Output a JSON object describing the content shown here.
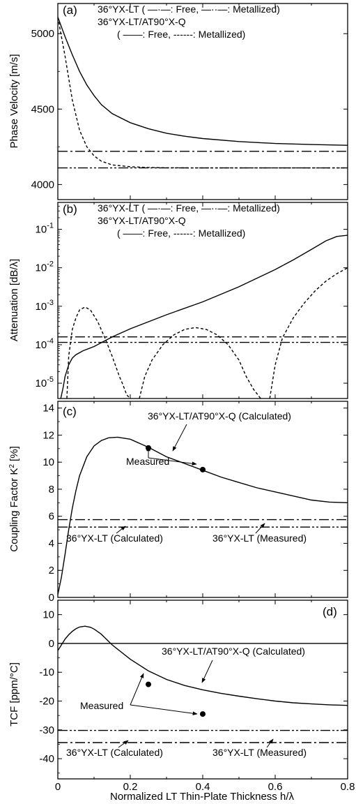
{
  "x_axis": {
    "label": "Normalized  LT  Thin-Plate  Thickness  h/λ",
    "range": [
      0,
      0.8
    ],
    "ticks": [
      "0",
      "0.2",
      "0.4",
      "0.6",
      "0.8"
    ]
  },
  "chart_data": [
    {
      "id": "a",
      "panel_label": "(a)",
      "type": "line",
      "ylabel": "Phase  Velocity  [m/s]",
      "yscale": "linear",
      "ylim": [
        3900,
        5200
      ],
      "yticks": [
        {
          "v": 4000,
          "label": "4000"
        },
        {
          "v": 4500,
          "label": "4500"
        },
        {
          "v": 5000,
          "label": "5000"
        }
      ],
      "legend": [
        "36°YX-LT (  —·—:  Free,  —··—:  Metallized)",
        "36°YX-LT/AT90°X-Q",
        "( ——:  Free,  ------:  Metallized)"
      ],
      "series": [
        {
          "style": "solid",
          "x": [
            0,
            0.02,
            0.04,
            0.06,
            0.08,
            0.1,
            0.12,
            0.15,
            0.2,
            0.25,
            0.3,
            0.35,
            0.4,
            0.5,
            0.6,
            0.7,
            0.8
          ],
          "y": [
            5110,
            4980,
            4860,
            4750,
            4660,
            4590,
            4530,
            4470,
            4410,
            4370,
            4340,
            4320,
            4305,
            4285,
            4272,
            4265,
            4260
          ]
        },
        {
          "style": "dashed",
          "x": [
            0,
            0.02,
            0.04,
            0.06,
            0.08,
            0.1,
            0.12,
            0.15,
            0.2,
            0.25,
            0.3,
            0.4,
            0.5,
            0.6,
            0.8
          ],
          "y": [
            5110,
            4850,
            4560,
            4360,
            4250,
            4190,
            4155,
            4130,
            4118,
            4113,
            4111,
            4110,
            4110,
            4110,
            4110
          ]
        },
        {
          "style": "dashdot",
          "x": [
            0,
            0.8
          ],
          "y": [
            4220,
            4220
          ]
        },
        {
          "style": "dashdotdot",
          "x": [
            0,
            0.8
          ],
          "y": [
            4110,
            4110
          ]
        }
      ],
      "annotations": [],
      "measured": []
    },
    {
      "id": "b",
      "panel_label": "(b)",
      "type": "line",
      "ylabel": "Attenuation  [dB/λ]",
      "yscale": "log",
      "ylim": [
        4e-06,
        0.5
      ],
      "yticks": [
        {
          "v": 1e-05,
          "label": "10-5"
        },
        {
          "v": 0.0001,
          "label": "10-4"
        },
        {
          "v": 0.001,
          "label": "10-3"
        },
        {
          "v": 0.01,
          "label": "10-2"
        },
        {
          "v": 0.1,
          "label": "10-1"
        }
      ],
      "legend": [
        "36°YX-LT (  —·—:  Free,  —··—:  Metallized)",
        "36°YX-LT/AT90°X-Q",
        "( ——:  Free,  ------:  Metallized)"
      ],
      "series": [
        {
          "style": "solid",
          "x": [
            0.008,
            0.015,
            0.02,
            0.03,
            0.04,
            0.05,
            0.07,
            0.1,
            0.15,
            0.2,
            0.3,
            0.4,
            0.5,
            0.6,
            0.65,
            0.7,
            0.74,
            0.77,
            0.8
          ],
          "y": [
            4e-06,
            8e-06,
            1.5e-05,
            3e-05,
            4.5e-05,
            5.5e-05,
            7e-05,
            9e-05,
            0.00016,
            0.00026,
            0.0006,
            0.0013,
            0.0032,
            0.009,
            0.016,
            0.03,
            0.05,
            0.065,
            0.07
          ]
        },
        {
          "style": "dashed",
          "x": [
            0.025,
            0.03,
            0.04,
            0.05,
            0.06,
            0.075,
            0.09,
            0.11,
            0.13,
            0.15,
            0.17,
            0.18,
            0.19,
            0.2
          ],
          "y": [
            4e-06,
            5e-05,
            0.00025,
            0.0005,
            0.0008,
            0.00095,
            0.0008,
            0.0004,
            0.00015,
            5e-05,
            1.5e-05,
            9e-06,
            5e-06,
            4e-06
          ]
        },
        {
          "style": "dashed",
          "x": [
            0.225,
            0.24,
            0.26,
            0.29,
            0.32,
            0.35,
            0.38,
            0.41,
            0.44,
            0.47,
            0.5,
            0.52,
            0.54,
            0.56
          ],
          "y": [
            4e-06,
            1.5e-05,
            4e-05,
            0.0001,
            0.00018,
            0.00025,
            0.00028,
            0.00025,
            0.00018,
            0.0001,
            4e-05,
            1.5e-05,
            7e-06,
            4e-06
          ]
        },
        {
          "style": "dashed",
          "x": [
            0.585,
            0.6,
            0.62,
            0.65,
            0.68,
            0.71,
            0.74,
            0.77,
            0.8
          ],
          "y": [
            4e-06,
            3e-05,
            0.00015,
            0.0005,
            0.0012,
            0.0025,
            0.0045,
            0.007,
            0.01
          ]
        },
        {
          "style": "dashdot",
          "x": [
            0,
            0.8
          ],
          "y": [
            0.00016,
            0.00016
          ]
        },
        {
          "style": "dashdotdot",
          "x": [
            0,
            0.8
          ],
          "y": [
            0.000115,
            0.000115
          ]
        }
      ],
      "annotations": [],
      "measured": []
    },
    {
      "id": "c",
      "panel_label": "(c)",
      "type": "line",
      "ylabel": "Coupling  Factor  K2  [%]",
      "yscale": "linear",
      "ylim": [
        0,
        14.5
      ],
      "yticks": [
        {
          "v": 0,
          "label": "0"
        },
        {
          "v": 2,
          "label": "2"
        },
        {
          "v": 4,
          "label": "4"
        },
        {
          "v": 6,
          "label": "6"
        },
        {
          "v": 8,
          "label": "8"
        },
        {
          "v": 10,
          "label": "10"
        },
        {
          "v": 12,
          "label": "12"
        },
        {
          "v": 14,
          "label": "14"
        }
      ],
      "legend": [],
      "series": [
        {
          "style": "solid",
          "x": [
            0,
            0.01,
            0.02,
            0.03,
            0.04,
            0.05,
            0.06,
            0.08,
            0.1,
            0.12,
            0.14,
            0.165,
            0.2,
            0.25,
            0.3,
            0.35,
            0.4,
            0.45,
            0.5,
            0.55,
            0.6,
            0.65,
            0.7,
            0.75,
            0.8
          ],
          "y": [
            0.2,
            1.5,
            3.2,
            5.0,
            6.6,
            7.9,
            9.0,
            10.4,
            11.2,
            11.6,
            11.8,
            11.85,
            11.7,
            11.1,
            10.4,
            9.9,
            9.4,
            8.9,
            8.5,
            8.1,
            7.8,
            7.5,
            7.2,
            7.05,
            7.0
          ]
        },
        {
          "style": "dashdot",
          "x": [
            0,
            0.8
          ],
          "y": [
            5.75,
            5.75
          ]
        },
        {
          "style": "dashdotdot",
          "x": [
            0,
            0.8
          ],
          "y": [
            5.2,
            5.2
          ]
        }
      ],
      "measured": [
        {
          "x": 0.25,
          "y": 11.05
        },
        {
          "x": 0.4,
          "y": 9.45
        }
      ],
      "annotations": [
        "36°YX-LT/AT90°X-Q  (Calculated)",
        "Measured",
        "36°YX-LT  (Calculated)",
        "36°YX-LT  (Measured)"
      ]
    },
    {
      "id": "d",
      "panel_label": "(d)",
      "type": "line",
      "ylabel": "TCF  [ppm/°C]",
      "yscale": "linear",
      "ylim": [
        -47,
        15
      ],
      "yticks": [
        {
          "v": -40,
          "label": "-40"
        },
        {
          "v": -30,
          "label": "-30"
        },
        {
          "v": -20,
          "label": "-20"
        },
        {
          "v": -10,
          "label": "-10"
        },
        {
          "v": 0,
          "label": "0"
        },
        {
          "v": 10,
          "label": "10"
        }
      ],
      "legend": [],
      "series": [
        {
          "style": "solid",
          "x": [
            0,
            0.01,
            0.02,
            0.03,
            0.04,
            0.05,
            0.06,
            0.075,
            0.09,
            0.1,
            0.12,
            0.15,
            0.2,
            0.25,
            0.3,
            0.35,
            0.4,
            0.45,
            0.5,
            0.55,
            0.6,
            0.65,
            0.7,
            0.75,
            0.8
          ],
          "y": [
            -2.5,
            -0.5,
            1.5,
            3.0,
            4.2,
            5.1,
            5.7,
            6.0,
            5.6,
            5.0,
            3.2,
            -0.5,
            -5.5,
            -9.5,
            -12.5,
            -14.6,
            -16.1,
            -17.3,
            -18.3,
            -19.2,
            -20.0,
            -20.6,
            -21.0,
            -21.3,
            -21.5
          ]
        },
        {
          "style": "solid",
          "x": [
            0,
            0.8
          ],
          "y": [
            0,
            0
          ]
        },
        {
          "style": "dashdot",
          "x": [
            0,
            0.8
          ],
          "y": [
            -34.4,
            -34.4
          ]
        },
        {
          "style": "dashdotdot",
          "x": [
            0,
            0.8
          ],
          "y": [
            -30.2,
            -30.2
          ]
        }
      ],
      "measured": [
        {
          "x": 0.25,
          "y": -14.2
        },
        {
          "x": 0.4,
          "y": -24.5
        }
      ],
      "annotations": [
        "36°YX-LT/AT90°X-Q  (Calculated)",
        "Measured",
        "36°YX-LT  (Calculated)",
        "36°YX-LT  (Measured)"
      ]
    }
  ]
}
